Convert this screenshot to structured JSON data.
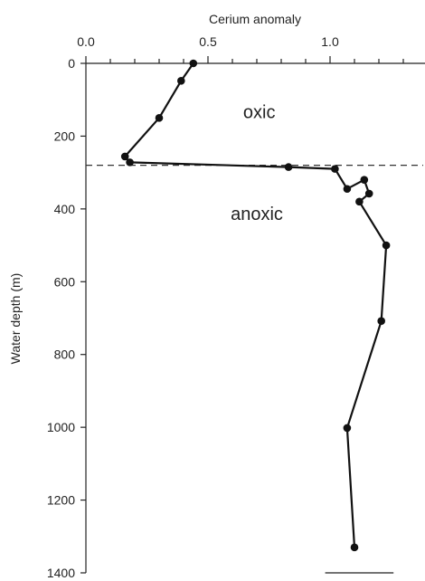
{
  "chart_data": {
    "type": "line",
    "xlabel": "Cerium anomaly",
    "ylabel": "Water depth (m)",
    "xlim": [
      0.0,
      1.35
    ],
    "ylim": [
      0,
      1400
    ],
    "x_axis_position": "top",
    "y_axis_inverted": true,
    "grid": false,
    "x_ticks": [
      0.0,
      0.5,
      1.0
    ],
    "x_tick_labels": [
      "0.0",
      "0.5",
      "1.0"
    ],
    "x_minor_step": 0.1,
    "y_ticks": [
      0,
      200,
      400,
      600,
      800,
      1000,
      1200,
      1400
    ],
    "y_tick_labels": [
      "0",
      "200",
      "400",
      "600",
      "800",
      "1000",
      "1200",
      "1400"
    ],
    "series": [
      {
        "points": [
          {
            "x": 0.44,
            "y": 0
          },
          {
            "x": 0.39,
            "y": 48
          },
          {
            "x": 0.3,
            "y": 150
          },
          {
            "x": 0.16,
            "y": 256
          },
          {
            "x": 0.18,
            "y": 272
          },
          {
            "x": 0.83,
            "y": 285
          },
          {
            "x": 1.02,
            "y": 290
          },
          {
            "x": 1.07,
            "y": 345
          },
          {
            "x": 1.14,
            "y": 320
          },
          {
            "x": 1.16,
            "y": 358
          },
          {
            "x": 1.12,
            "y": 380
          },
          {
            "x": 1.23,
            "y": 500
          },
          {
            "x": 1.21,
            "y": 708
          },
          {
            "x": 1.07,
            "y": 1002
          },
          {
            "x": 1.1,
            "y": 1330
          }
        ]
      }
    ],
    "reference_line": {
      "y": 280,
      "style": "dashed"
    },
    "bottom_segment": {
      "x": [
        0.98,
        1.26
      ],
      "y": 1400
    },
    "annotations": [
      {
        "text": "oxic",
        "x": 0.71,
        "y": 150
      },
      {
        "text": "anoxic",
        "x": 0.7,
        "y": 430
      }
    ]
  }
}
